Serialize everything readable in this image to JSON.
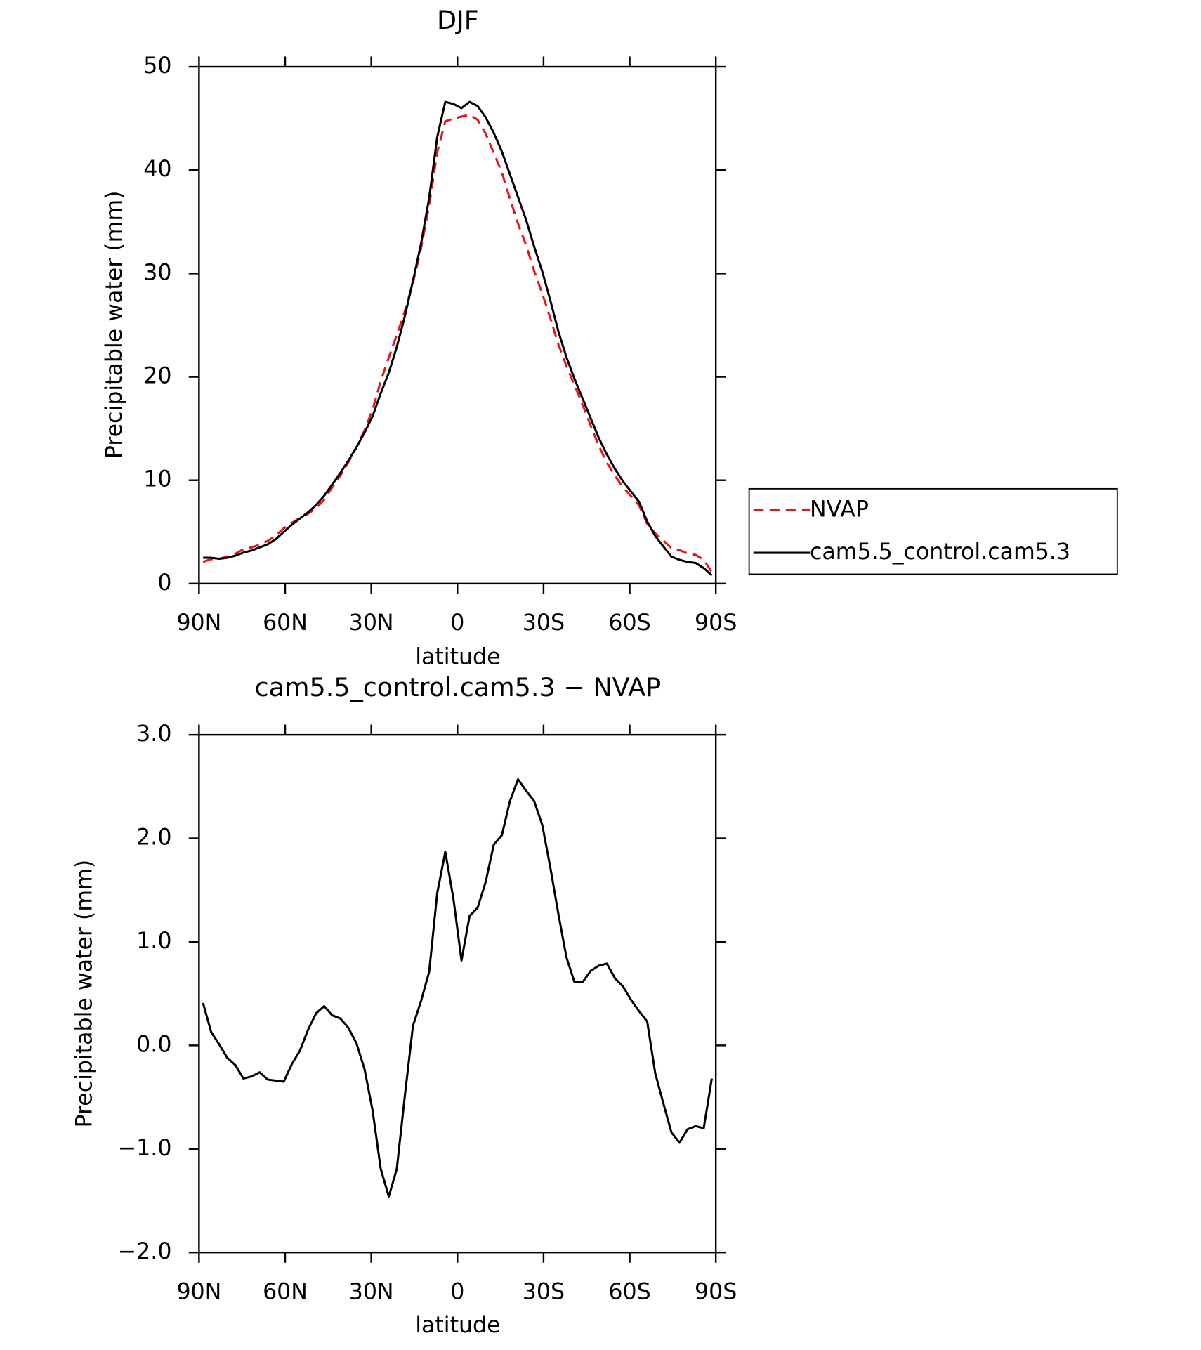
{
  "chart_data": [
    {
      "type": "line",
      "title": "DJF",
      "xlabel": "latitude",
      "ylabel": "Precipitable water (mm)",
      "x": [
        88.6,
        85.79,
        82.98,
        80.16,
        77.35,
        74.54,
        71.73,
        68.91,
        66.1,
        63.29,
        60.48,
        57.66,
        54.85,
        52.04,
        49.23,
        46.41,
        43.6,
        40.79,
        37.98,
        35.16,
        32.35,
        29.54,
        26.73,
        23.91,
        21.1,
        18.29,
        15.48,
        12.66,
        9.85,
        7.04,
        4.23,
        1.41,
        -1.41,
        -4.23,
        -7.04,
        -9.85,
        -12.66,
        -15.48,
        -18.29,
        -21.1,
        -23.91,
        -26.73,
        -29.54,
        -32.35,
        -35.16,
        -37.98,
        -40.79,
        -43.6,
        -46.41,
        -49.23,
        -52.04,
        -54.85,
        -57.66,
        -60.48,
        -63.29,
        -66.1,
        -68.91,
        -71.73,
        -74.54,
        -77.35,
        -80.16,
        -82.98,
        -85.79,
        -88.6
      ],
      "series": [
        {
          "name": "NVAP",
          "color": "#e8141c",
          "dash": "dashed",
          "values": [
            2.09,
            2.37,
            2.39,
            2.62,
            2.89,
            3.32,
            3.5,
            3.76,
            4.13,
            4.64,
            5.35,
            5.88,
            6.35,
            6.75,
            7.29,
            8.12,
            9.31,
            10.44,
            11.73,
            13.18,
            14.83,
            16.83,
            19.59,
            21.86,
            24.09,
            26.38,
            29.11,
            32.47,
            36.59,
            41.73,
            44.73,
            44.98,
            45.18,
            45.35,
            44.87,
            43.52,
            41.66,
            39.77,
            37.24,
            34.83,
            32.74,
            30.24,
            28.07,
            25.68,
            23.13,
            21.05,
            19.19,
            17.29,
            15.28,
            13.33,
            11.71,
            10.45,
            9.33,
            8.46,
            7.57,
            5.77,
            4.87,
            4.16,
            3.44,
            3.24,
            2.91,
            2.78,
            2.3,
            1.12
          ]
        },
        {
          "name": "cam5.5_control.cam5.3",
          "color": "#000000",
          "dash": "solid",
          "values": [
            2.5,
            2.5,
            2.4,
            2.5,
            2.7,
            3.0,
            3.2,
            3.5,
            3.8,
            4.3,
            5.0,
            5.7,
            6.3,
            6.9,
            7.6,
            8.5,
            9.6,
            10.7,
            11.9,
            13.2,
            14.6,
            16.2,
            18.4,
            20.4,
            22.9,
            25.9,
            29.3,
            32.9,
            37.3,
            43.2,
            46.6,
            46.4,
            46.0,
            46.6,
            46.2,
            45.1,
            43.6,
            41.8,
            39.6,
            37.4,
            35.2,
            32.6,
            30.2,
            27.4,
            24.4,
            21.9,
            19.8,
            17.9,
            16.0,
            14.1,
            12.5,
            11.1,
            9.9,
            8.9,
            7.9,
            6.0,
            4.6,
            3.6,
            2.6,
            2.3,
            2.1,
            2.0,
            1.5,
            0.8
          ]
        }
      ],
      "xlim": [
        90,
        -90
      ],
      "xticks": [
        {
          "value": 90,
          "label": "90N"
        },
        {
          "value": 60,
          "label": "60N"
        },
        {
          "value": 30,
          "label": "30N"
        },
        0,
        {
          "value": -30,
          "label": "30S"
        },
        {
          "value": -60,
          "label": "60S"
        },
        {
          "value": -90,
          "label": "90S"
        }
      ],
      "ylim": [
        0,
        50
      ],
      "yticks": [
        0,
        10,
        20,
        30,
        40,
        50
      ],
      "legend": "right"
    },
    {
      "type": "line",
      "title": "cam5.5_control.cam5.3 − NVAP",
      "xlabel": "latitude",
      "ylabel": "Precipitable water (mm)",
      "x": [
        88.6,
        85.79,
        82.98,
        80.16,
        77.35,
        74.54,
        71.73,
        68.91,
        66.1,
        63.29,
        60.48,
        57.66,
        54.85,
        52.04,
        49.23,
        46.41,
        43.6,
        40.79,
        37.98,
        35.16,
        32.35,
        29.54,
        26.73,
        23.91,
        21.1,
        18.29,
        15.48,
        12.66,
        9.85,
        7.04,
        4.23,
        1.41,
        -1.41,
        -4.23,
        -7.04,
        -9.85,
        -12.66,
        -15.48,
        -18.29,
        -21.1,
        -23.91,
        -26.73,
        -29.54,
        -32.35,
        -35.16,
        -37.98,
        -40.79,
        -43.6,
        -46.41,
        -49.23,
        -52.04,
        -54.85,
        -57.66,
        -60.48,
        -63.29,
        -66.1,
        -68.91,
        -71.73,
        -74.54,
        -77.35,
        -80.16,
        -82.98,
        -85.79,
        -88.6
      ],
      "values": [
        0.41,
        0.13,
        0.01,
        -0.12,
        -0.19,
        -0.32,
        -0.3,
        -0.26,
        -0.33,
        -0.34,
        -0.35,
        -0.18,
        -0.05,
        0.15,
        0.31,
        0.38,
        0.29,
        0.26,
        0.17,
        0.02,
        -0.23,
        -0.63,
        -1.19,
        -1.46,
        -1.19,
        -0.48,
        0.19,
        0.43,
        0.71,
        1.47,
        1.87,
        1.42,
        0.82,
        1.25,
        1.33,
        1.58,
        1.94,
        2.03,
        2.36,
        2.57,
        2.46,
        2.36,
        2.13,
        1.72,
        1.27,
        0.85,
        0.61,
        0.61,
        0.72,
        0.77,
        0.79,
        0.65,
        0.57,
        0.44,
        0.33,
        0.23,
        -0.27,
        -0.56,
        -0.84,
        -0.94,
        -0.81,
        -0.78,
        -0.8,
        -0.32
      ],
      "color": "#000000",
      "xlim": [
        90,
        -90
      ],
      "xticks": [
        {
          "value": 90,
          "label": "90N"
        },
        {
          "value": 60,
          "label": "60N"
        },
        {
          "value": 30,
          "label": "30N"
        },
        0,
        {
          "value": -30,
          "label": "30S"
        },
        {
          "value": -60,
          "label": "60S"
        },
        {
          "value": -90,
          "label": "90S"
        }
      ],
      "ylim": [
        -2,
        3
      ],
      "yticks": [
        {
          "value": -2,
          "label": "−2.0"
        },
        {
          "value": -1,
          "label": "−1.0"
        },
        {
          "value": 0,
          "label": "0.0"
        },
        {
          "value": 1,
          "label": "1.0"
        },
        {
          "value": 2,
          "label": "2.0"
        },
        {
          "value": 3,
          "label": "3.0"
        }
      ]
    }
  ]
}
